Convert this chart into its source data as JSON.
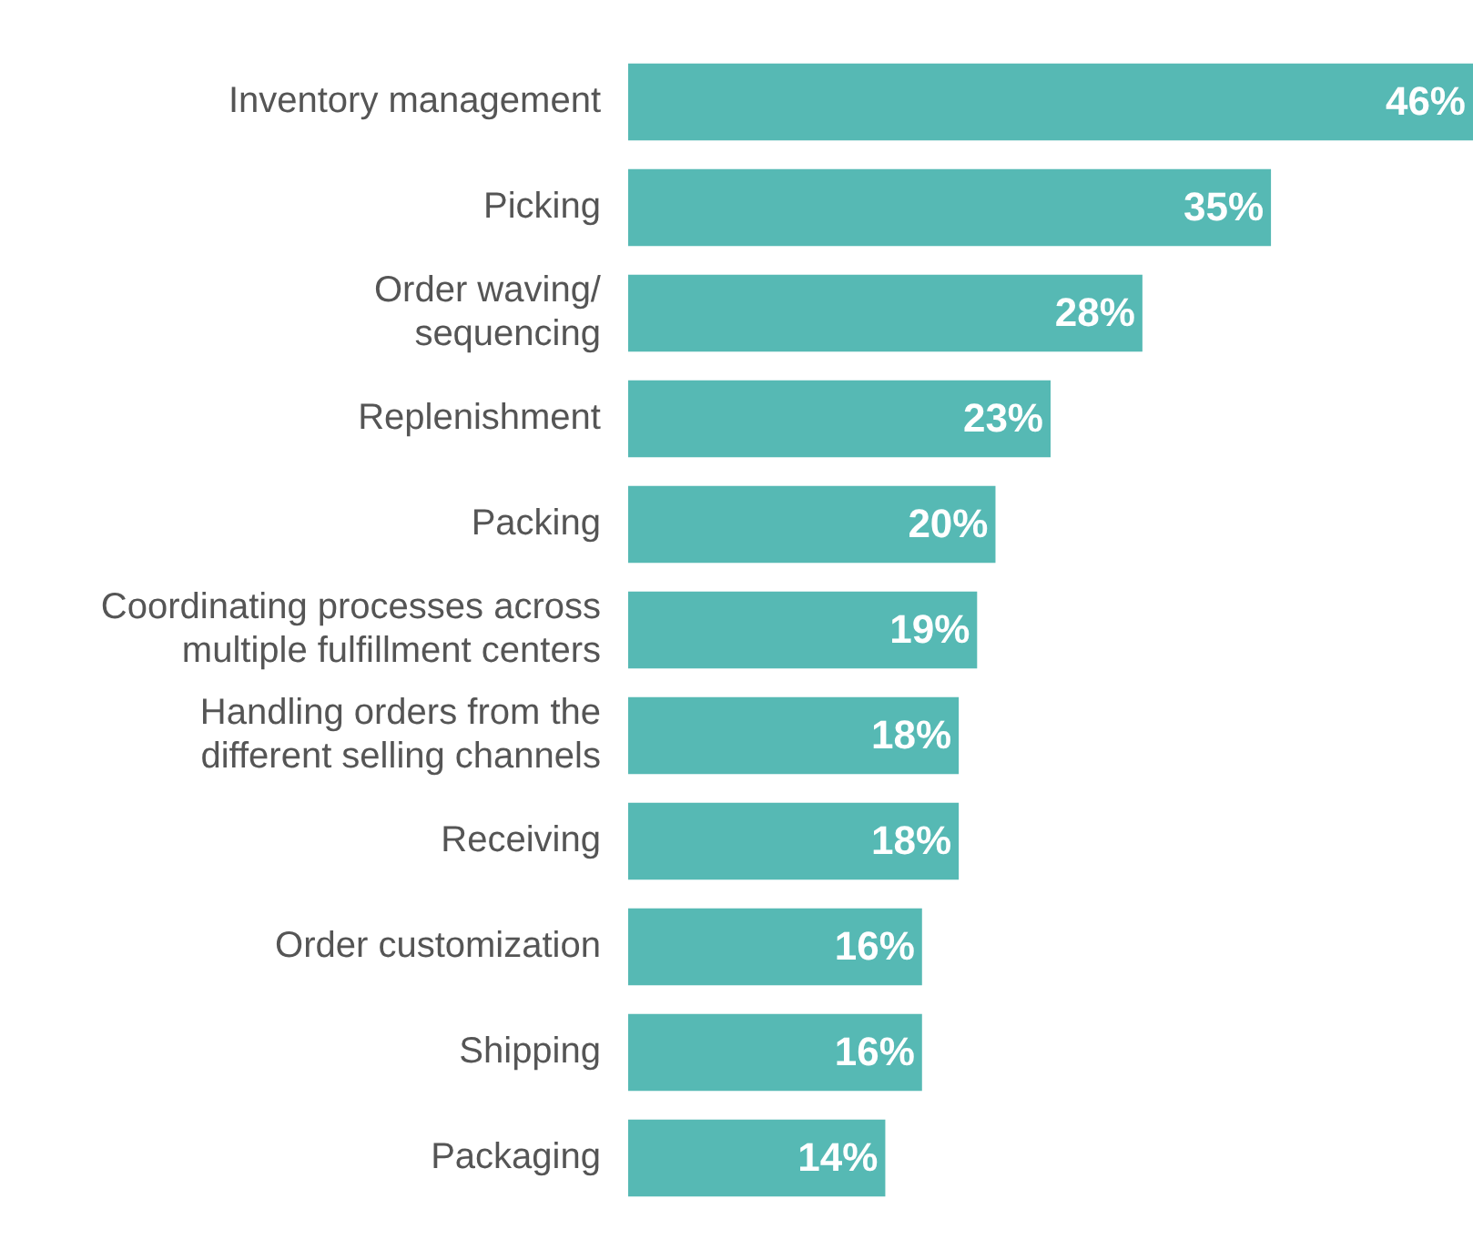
{
  "chart_data": {
    "type": "bar",
    "orientation": "horizontal",
    "categories": [
      "Inventory management",
      "Picking",
      "Order waving/\nsequencing",
      "Replenishment",
      "Packing",
      "Coordinating processes across\nmultiple fulfillment centers",
      "Handling orders from the\ndifferent selling channels",
      "Receiving",
      "Order customization",
      "Shipping",
      "Packaging"
    ],
    "values": [
      46,
      35,
      28,
      23,
      20,
      19,
      18,
      18,
      16,
      16,
      14
    ],
    "value_labels": [
      "46%",
      "35%",
      "28%",
      "23%",
      "20%",
      "19%",
      "18%",
      "18%",
      "16%",
      "16%",
      "14%"
    ],
    "color": "#56b9b4",
    "tick_labels": "y"
  }
}
